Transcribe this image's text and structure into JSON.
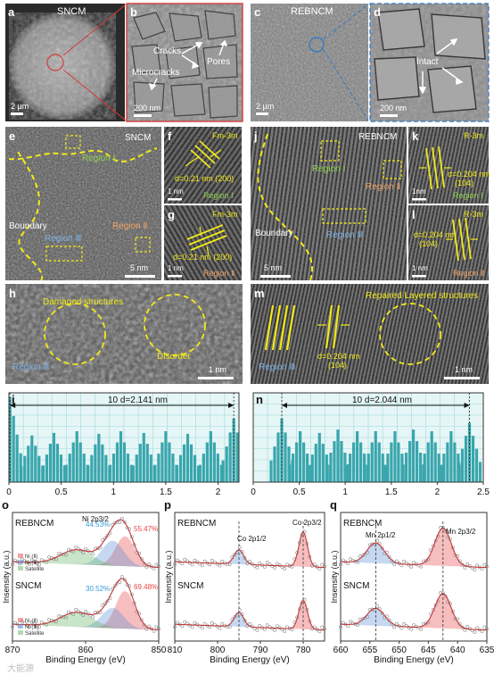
{
  "panel_letters": {
    "a": "a",
    "b": "b",
    "c": "c",
    "d": "d",
    "e": "e",
    "f": "f",
    "g": "g",
    "h": "h",
    "i": "i",
    "j": "j",
    "k": "k",
    "l": "l",
    "m": "m",
    "n": "n",
    "o": "o",
    "p": "p",
    "q": "q"
  },
  "sem": {
    "a_title": "SNCM",
    "a_scale": "2 μm",
    "b_cracks": "Cracks",
    "b_pores": "Pores",
    "b_microcracks": "Microcracks",
    "b_scale": "200 nm",
    "c_title": "REBNCM",
    "c_scale": "2 μm",
    "d_intact": "Intact",
    "d_scale": "200 nm"
  },
  "tem": {
    "e_title": "SNCM",
    "e_region1": "Region Ⅰ",
    "e_region2": "Region Ⅱ",
    "e_region3": "Region Ⅲ",
    "e_boundary": "Boundary",
    "e_scale": "5 nm",
    "f_phase": "Fm-3m",
    "f_d": "d=0.21 nm (200)",
    "f_scale": "1 nm",
    "f_region": "Region Ⅰ",
    "g_phase": "Fm-3m",
    "g_d": "d=0.21 nm (200)",
    "g_scale": "1 nm",
    "g_region": "Region Ⅱ",
    "h_damaged": "Damaged structures",
    "h_disorder": "Disorder",
    "h_region": "Region Ⅲ",
    "h_scale": "1 nm",
    "j_title": "REBNCM",
    "j_region1": "Region Ⅰ",
    "j_region2": "Region Ⅱ",
    "j_region3": "Region Ⅲ",
    "j_boundary": "Boundary",
    "j_scale": "5 nm",
    "k_phase": "R-3m",
    "k_d": "d=0.204 nm",
    "k_hkl": "(104)",
    "k_scale": "1nm",
    "k_region": "Region Ⅰ",
    "l_phase": "R-3m",
    "l_d": "d=0.204 nm",
    "l_hkl": "(104)",
    "l_scale": "1 nm",
    "l_region": "Region Ⅱ",
    "m_repaired": "Repaired Layered structures",
    "m_d": "d=0.204 nm",
    "m_hkl": "(104)",
    "m_region": "Region Ⅲ",
    "m_scale": "1 nm"
  },
  "colors": {
    "yellow": "#f2ea1a",
    "green_label": "#8fd14f",
    "orange_label": "#f0a366",
    "blue_label": "#7fb2e5",
    "bar": "#3aa6ad",
    "red_peak": "#e64545",
    "blue_peak": "#5b8fd6",
    "green_peak": "#64b464",
    "fit": "#c23a3a"
  },
  "chart_data": [
    {
      "panel": "i",
      "type": "bar",
      "title": "",
      "xlabel": "",
      "ylabel": "",
      "annotation": "10 d=2.141 nm",
      "xlim": [
        0,
        2.2
      ],
      "xticks": [
        "0",
        "0.5",
        "1",
        "1.5",
        "2"
      ],
      "grid": true,
      "peaks": [
        0.01,
        0.22,
        0.43,
        0.65,
        0.86,
        1.07,
        1.29,
        1.5,
        1.71,
        1.93,
        2.15
      ],
      "peak_heights": [
        1.0,
        0.55,
        0.58,
        0.6,
        0.57,
        0.6,
        0.58,
        0.6,
        0.57,
        0.6,
        0.75
      ]
    },
    {
      "panel": "n",
      "type": "bar",
      "title": "",
      "xlabel": "",
      "ylabel": "",
      "annotation": "10 d=2.044 nm",
      "xlim": [
        0,
        2.5
      ],
      "xticks": [
        "0",
        "0.5",
        "1",
        "1.5",
        "2",
        "2.5"
      ],
      "grid": true,
      "peaks": [
        0.31,
        0.51,
        0.72,
        0.92,
        1.13,
        1.33,
        1.54,
        1.74,
        1.94,
        2.15,
        2.35
      ],
      "peak_heights": [
        0.75,
        0.6,
        0.58,
        0.62,
        0.6,
        0.6,
        0.6,
        0.62,
        0.6,
        0.6,
        0.7
      ]
    },
    {
      "panel": "o",
      "type": "line",
      "xlabel": "Binding Energy (eV)",
      "ylabel": "Insensity (a.u.)",
      "xlim": [
        870,
        850
      ],
      "xticks": [
        "870",
        "860",
        "850"
      ],
      "top_label": "REBNCM",
      "bottom_label": "SNCM",
      "peak_label": "Ni 2p3/2",
      "top_pct_blue": "44.53%",
      "top_pct_red": "55.47%",
      "bottom_pct_blue": "30.52%",
      "bottom_pct_red": "69.48%",
      "legend": [
        "Ni (Ⅱ)",
        "Ni (Ⅲ)",
        "Satellite"
      ]
    },
    {
      "panel": "p",
      "type": "line",
      "xlabel": "Binding Energy (eV)",
      "ylabel": "Insensity (a.u.)",
      "xlim": [
        810,
        775
      ],
      "xticks": [
        "810",
        "800",
        "790",
        "780"
      ],
      "top_label": "REBNCM",
      "bottom_label": "SNCM",
      "peak1": "Co 2p1/2",
      "peak2": "Co 2p3/2",
      "peak_positions": [
        795,
        780
      ]
    },
    {
      "panel": "q",
      "type": "line",
      "xlabel": "Binding Energy (eV)",
      "ylabel": "Insensity (a.u.)",
      "xlim": [
        660,
        635
      ],
      "xticks": [
        "660",
        "655",
        "650",
        "645",
        "640",
        "635"
      ],
      "top_label": "REBNCM",
      "bottom_label": "SNCM",
      "peak1": "Mn 2p1/2",
      "peak2": "Mn 2p3/2",
      "peak_positions": [
        654,
        642.5
      ]
    }
  ],
  "watermark": "大能源"
}
